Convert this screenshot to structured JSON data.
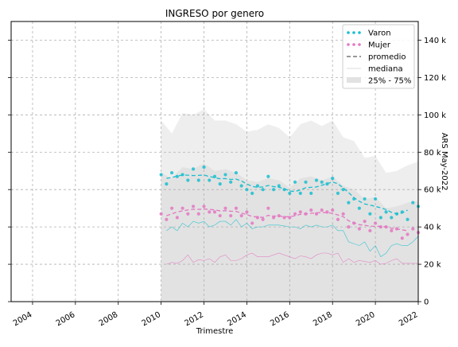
{
  "colors": {
    "varon": "#17becf",
    "mujer": "#e377c2",
    "band_outer": "#eeeeee",
    "band_inner": "#e2e2e2",
    "grid": "#b0b0b0"
  },
  "chart_data": {
    "type": "line",
    "title": "INGRESO por genero",
    "xlabel": "Trimestre",
    "ylabel": "ARS May-2022",
    "xlim": [
      2003.0,
      2022.0
    ],
    "ylim": [
      0,
      150000
    ],
    "x_ticks": [
      2004,
      2006,
      2008,
      2010,
      2012,
      2014,
      2016,
      2018,
      2020,
      2022
    ],
    "x_tick_labels": [
      "2004",
      "2006",
      "2008",
      "2010",
      "2012",
      "2014",
      "2016",
      "2018",
      "2020",
      "2022"
    ],
    "y_ticks": [
      0,
      20000,
      40000,
      60000,
      80000,
      100000,
      120000,
      140000
    ],
    "y_tick_labels": [
      "0",
      "20 k",
      "40 k",
      "60 k",
      "80 k",
      "100 k",
      "120 k",
      "140 k"
    ],
    "grid": true,
    "legend_position": "top-right",
    "legend": [
      "Varon",
      "Mujer",
      "promedio",
      "mediana",
      "25% - 75%"
    ],
    "band_outer": {
      "x": [
        2010.0,
        2010.5,
        2011.0,
        2011.5,
        2012.0,
        2012.5,
        2013.0,
        2013.5,
        2014.0,
        2014.5,
        2015.0,
        2015.5,
        2016.0,
        2016.5,
        2017.0,
        2017.5,
        2018.0,
        2018.5,
        2019.0,
        2019.5,
        2020.0,
        2020.5,
        2021.0,
        2021.5,
        2022.0
      ],
      "upper": [
        97000,
        90000,
        101000,
        100000,
        103000,
        97000,
        97000,
        95000,
        91000,
        92000,
        95000,
        93000,
        88000,
        95000,
        97000,
        94000,
        97000,
        88000,
        86000,
        77000,
        78000,
        69000,
        70000,
        73000,
        75000
      ],
      "lower": [
        20000,
        20000,
        21000,
        21000,
        21000,
        21000,
        22000,
        22000,
        22000,
        22000,
        22000,
        22000,
        22000,
        22000,
        22000,
        22000,
        22000,
        22000,
        22000,
        21000,
        21000,
        20000,
        20000,
        20000,
        20000
      ]
    },
    "band_inner": {
      "x": [
        2010.0,
        2010.5,
        2011.0,
        2011.5,
        2012.0,
        2012.5,
        2013.0,
        2013.5,
        2014.0,
        2014.5,
        2015.0,
        2015.5,
        2016.0,
        2016.5,
        2017.0,
        2017.5,
        2018.0,
        2018.5,
        2019.0,
        2019.5,
        2020.0,
        2020.5,
        2021.0,
        2021.5,
        2022.0
      ],
      "upper": [
        69000,
        66000,
        72000,
        71000,
        74000,
        70000,
        71000,
        69000,
        65000,
        64000,
        66000,
        65000,
        61000,
        66000,
        67000,
        65000,
        67000,
        62000,
        60000,
        55000,
        56000,
        50000,
        51000,
        53000,
        54000
      ],
      "lower": [
        0,
        0,
        0,
        0,
        0,
        0,
        0,
        0,
        0,
        0,
        0,
        0,
        0,
        0,
        0,
        0,
        0,
        0,
        0,
        0,
        0,
        0,
        0,
        0,
        0
      ]
    },
    "series": [
      {
        "name": "Varon",
        "color_key": "varon",
        "x": [
          2010.0,
          2010.25,
          2010.5,
          2010.75,
          2011.0,
          2011.25,
          2011.5,
          2011.75,
          2012.0,
          2012.25,
          2012.5,
          2012.75,
          2013.0,
          2013.25,
          2013.5,
          2013.75,
          2014.0,
          2014.25,
          2014.5,
          2014.75,
          2015.0,
          2015.25,
          2015.5,
          2015.75,
          2016.0,
          2016.25,
          2016.5,
          2016.75,
          2017.0,
          2017.25,
          2017.5,
          2017.75,
          2018.0,
          2018.25,
          2018.5,
          2018.75,
          2019.0,
          2019.25,
          2019.5,
          2019.75,
          2020.0,
          2020.25,
          2020.5,
          2020.75,
          2021.0,
          2021.25,
          2021.5,
          2021.75,
          2022.0
        ],
        "points": [
          68000,
          63000,
          69000,
          67000,
          68000,
          65000,
          71000,
          65000,
          72000,
          65000,
          67000,
          63000,
          68000,
          64000,
          69000,
          62000,
          60000,
          58000,
          62000,
          60000,
          67000,
          60000,
          62000,
          60000,
          58000,
          64000,
          58000,
          64000,
          58000,
          65000,
          64000,
          63000,
          66000,
          58000,
          60000,
          53000,
          55000,
          50000,
          55000,
          47000,
          55000,
          45000,
          48000,
          45000,
          47000,
          48000,
          44000,
          53000,
          51000
        ],
        "mean": [
          null,
          66000,
          66500,
          67200,
          67800,
          67700,
          67500,
          67600,
          67800,
          67000,
          66400,
          65800,
          65900,
          65400,
          65600,
          64600,
          63000,
          61700,
          61200,
          61400,
          62200,
          61600,
          61200,
          60500,
          59200,
          59000,
          59800,
          61000,
          61200,
          61400,
          62300,
          63200,
          64100,
          63100,
          60900,
          58400,
          55700,
          53700,
          52300,
          51700,
          51000,
          50200,
          49300,
          47800,
          47000,
          47500,
          49000,
          null,
          null
        ],
        "median": [
          null,
          38000,
          40000,
          38000,
          42000,
          40000,
          43000,
          42000,
          43000,
          40000,
          41000,
          43000,
          43000,
          41000,
          44000,
          40000,
          42000,
          39000,
          40000,
          40000,
          41000,
          41000,
          41000,
          40500,
          40000,
          40000,
          39000,
          41000,
          40000,
          41000,
          40000,
          40000,
          41000,
          38000,
          38000,
          32000,
          31000,
          30000,
          32000,
          27000,
          30000,
          24000,
          26000,
          30000,
          31000,
          30000,
          30000,
          32000,
          35000
        ]
      },
      {
        "name": "Mujer",
        "color_key": "mujer",
        "x": [
          2010.0,
          2010.25,
          2010.5,
          2010.75,
          2011.0,
          2011.25,
          2011.5,
          2011.75,
          2012.0,
          2012.25,
          2012.5,
          2012.75,
          2013.0,
          2013.25,
          2013.5,
          2013.75,
          2014.0,
          2014.25,
          2014.5,
          2014.75,
          2015.0,
          2015.25,
          2015.5,
          2015.75,
          2016.0,
          2016.25,
          2016.5,
          2016.75,
          2017.0,
          2017.25,
          2017.5,
          2017.75,
          2018.0,
          2018.25,
          2018.5,
          2018.75,
          2019.0,
          2019.25,
          2019.5,
          2019.75,
          2020.0,
          2020.25,
          2020.5,
          2020.75,
          2021.0,
          2021.25,
          2021.5,
          2021.75,
          2022.0
        ],
        "points": [
          47000,
          44000,
          50000,
          45000,
          50000,
          47000,
          51000,
          47000,
          51000,
          48000,
          48000,
          46000,
          50000,
          46000,
          50000,
          46000,
          48000,
          42000,
          45000,
          44000,
          50000,
          45000,
          46000,
          45000,
          45000,
          47000,
          48000,
          47000,
          49000,
          47000,
          49000,
          48000,
          49000,
          44000,
          47000,
          40000,
          42000,
          39000,
          43000,
          38000,
          42000,
          40000,
          40000,
          38000,
          39000,
          34000,
          36000,
          39000,
          37000
        ],
        "mean": [
          null,
          46000,
          47000,
          48000,
          48600,
          49100,
          49500,
          49400,
          49600,
          49400,
          49100,
          48600,
          48700,
          48400,
          48300,
          47400,
          46600,
          45600,
          45300,
          45100,
          46200,
          45800,
          45800,
          45500,
          45400,
          46000,
          46700,
          47000,
          47300,
          47500,
          47800,
          47600,
          47300,
          46400,
          45500,
          43300,
          42300,
          41200,
          40900,
          40400,
          40300,
          40300,
          40100,
          39300,
          38900,
          38400,
          38000,
          null,
          null
        ],
        "median": [
          null,
          20000,
          21000,
          20500,
          22000,
          25000,
          21000,
          22500,
          22000,
          23000,
          21000,
          24000,
          25000,
          22000,
          22000,
          23000,
          25000,
          26000,
          24000,
          24000,
          24000,
          25000,
          26000,
          25000,
          24000,
          23000,
          24500,
          24000,
          23000,
          25000,
          26000,
          26000,
          25000,
          26000,
          21000,
          23000,
          21000,
          22000,
          21500,
          21000,
          22000,
          20000,
          20500,
          22000,
          23000,
          20500,
          20500,
          20500,
          20500
        ]
      }
    ]
  }
}
